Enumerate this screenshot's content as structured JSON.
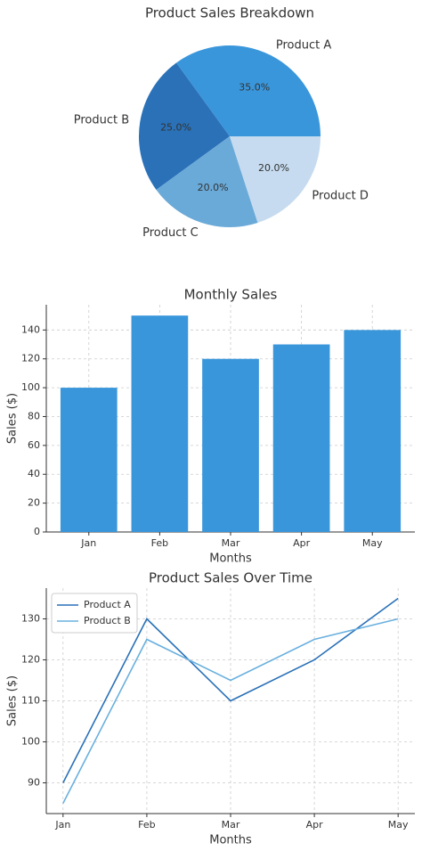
{
  "chart_data": [
    {
      "type": "pie",
      "title": "Product Sales Breakdown",
      "categories": [
        "Product A",
        "Product B",
        "Product C",
        "Product D"
      ],
      "values": [
        35,
        25,
        20,
        20
      ],
      "value_labels": [
        "35.0%",
        "25.0%",
        "20.0%",
        "20.0%"
      ],
      "colors": [
        "#3a96db",
        "#2a71b8",
        "#6aaad8",
        "#c6dbef"
      ]
    },
    {
      "type": "bar",
      "title": "Monthly Sales",
      "x_label": "Months",
      "y_label": "Sales ($)",
      "categories": [
        "Jan",
        "Feb",
        "Mar",
        "Apr",
        "May"
      ],
      "values": [
        100,
        150,
        120,
        130,
        140
      ],
      "color": "#3a96db",
      "ylim": [
        0,
        157.5
      ],
      "yticks": [
        0,
        20,
        40,
        60,
        80,
        100,
        120,
        140
      ],
      "grid": true
    },
    {
      "type": "line",
      "title": "Product Sales Over Time",
      "x_label": "Months",
      "y_label": "Sales ($)",
      "categories": [
        "Jan",
        "Feb",
        "Mar",
        "Apr",
        "May"
      ],
      "series": [
        {
          "name": "Product A",
          "color": "#2a71b8",
          "values": [
            90,
            130,
            110,
            120,
            135
          ]
        },
        {
          "name": "Product B",
          "color": "#6ab0de",
          "values": [
            85,
            125,
            115,
            125,
            130
          ]
        }
      ],
      "ylim": [
        82.5,
        137.5
      ],
      "yticks": [
        90,
        100,
        110,
        120,
        130
      ],
      "grid": true,
      "legend": "upper left"
    }
  ]
}
